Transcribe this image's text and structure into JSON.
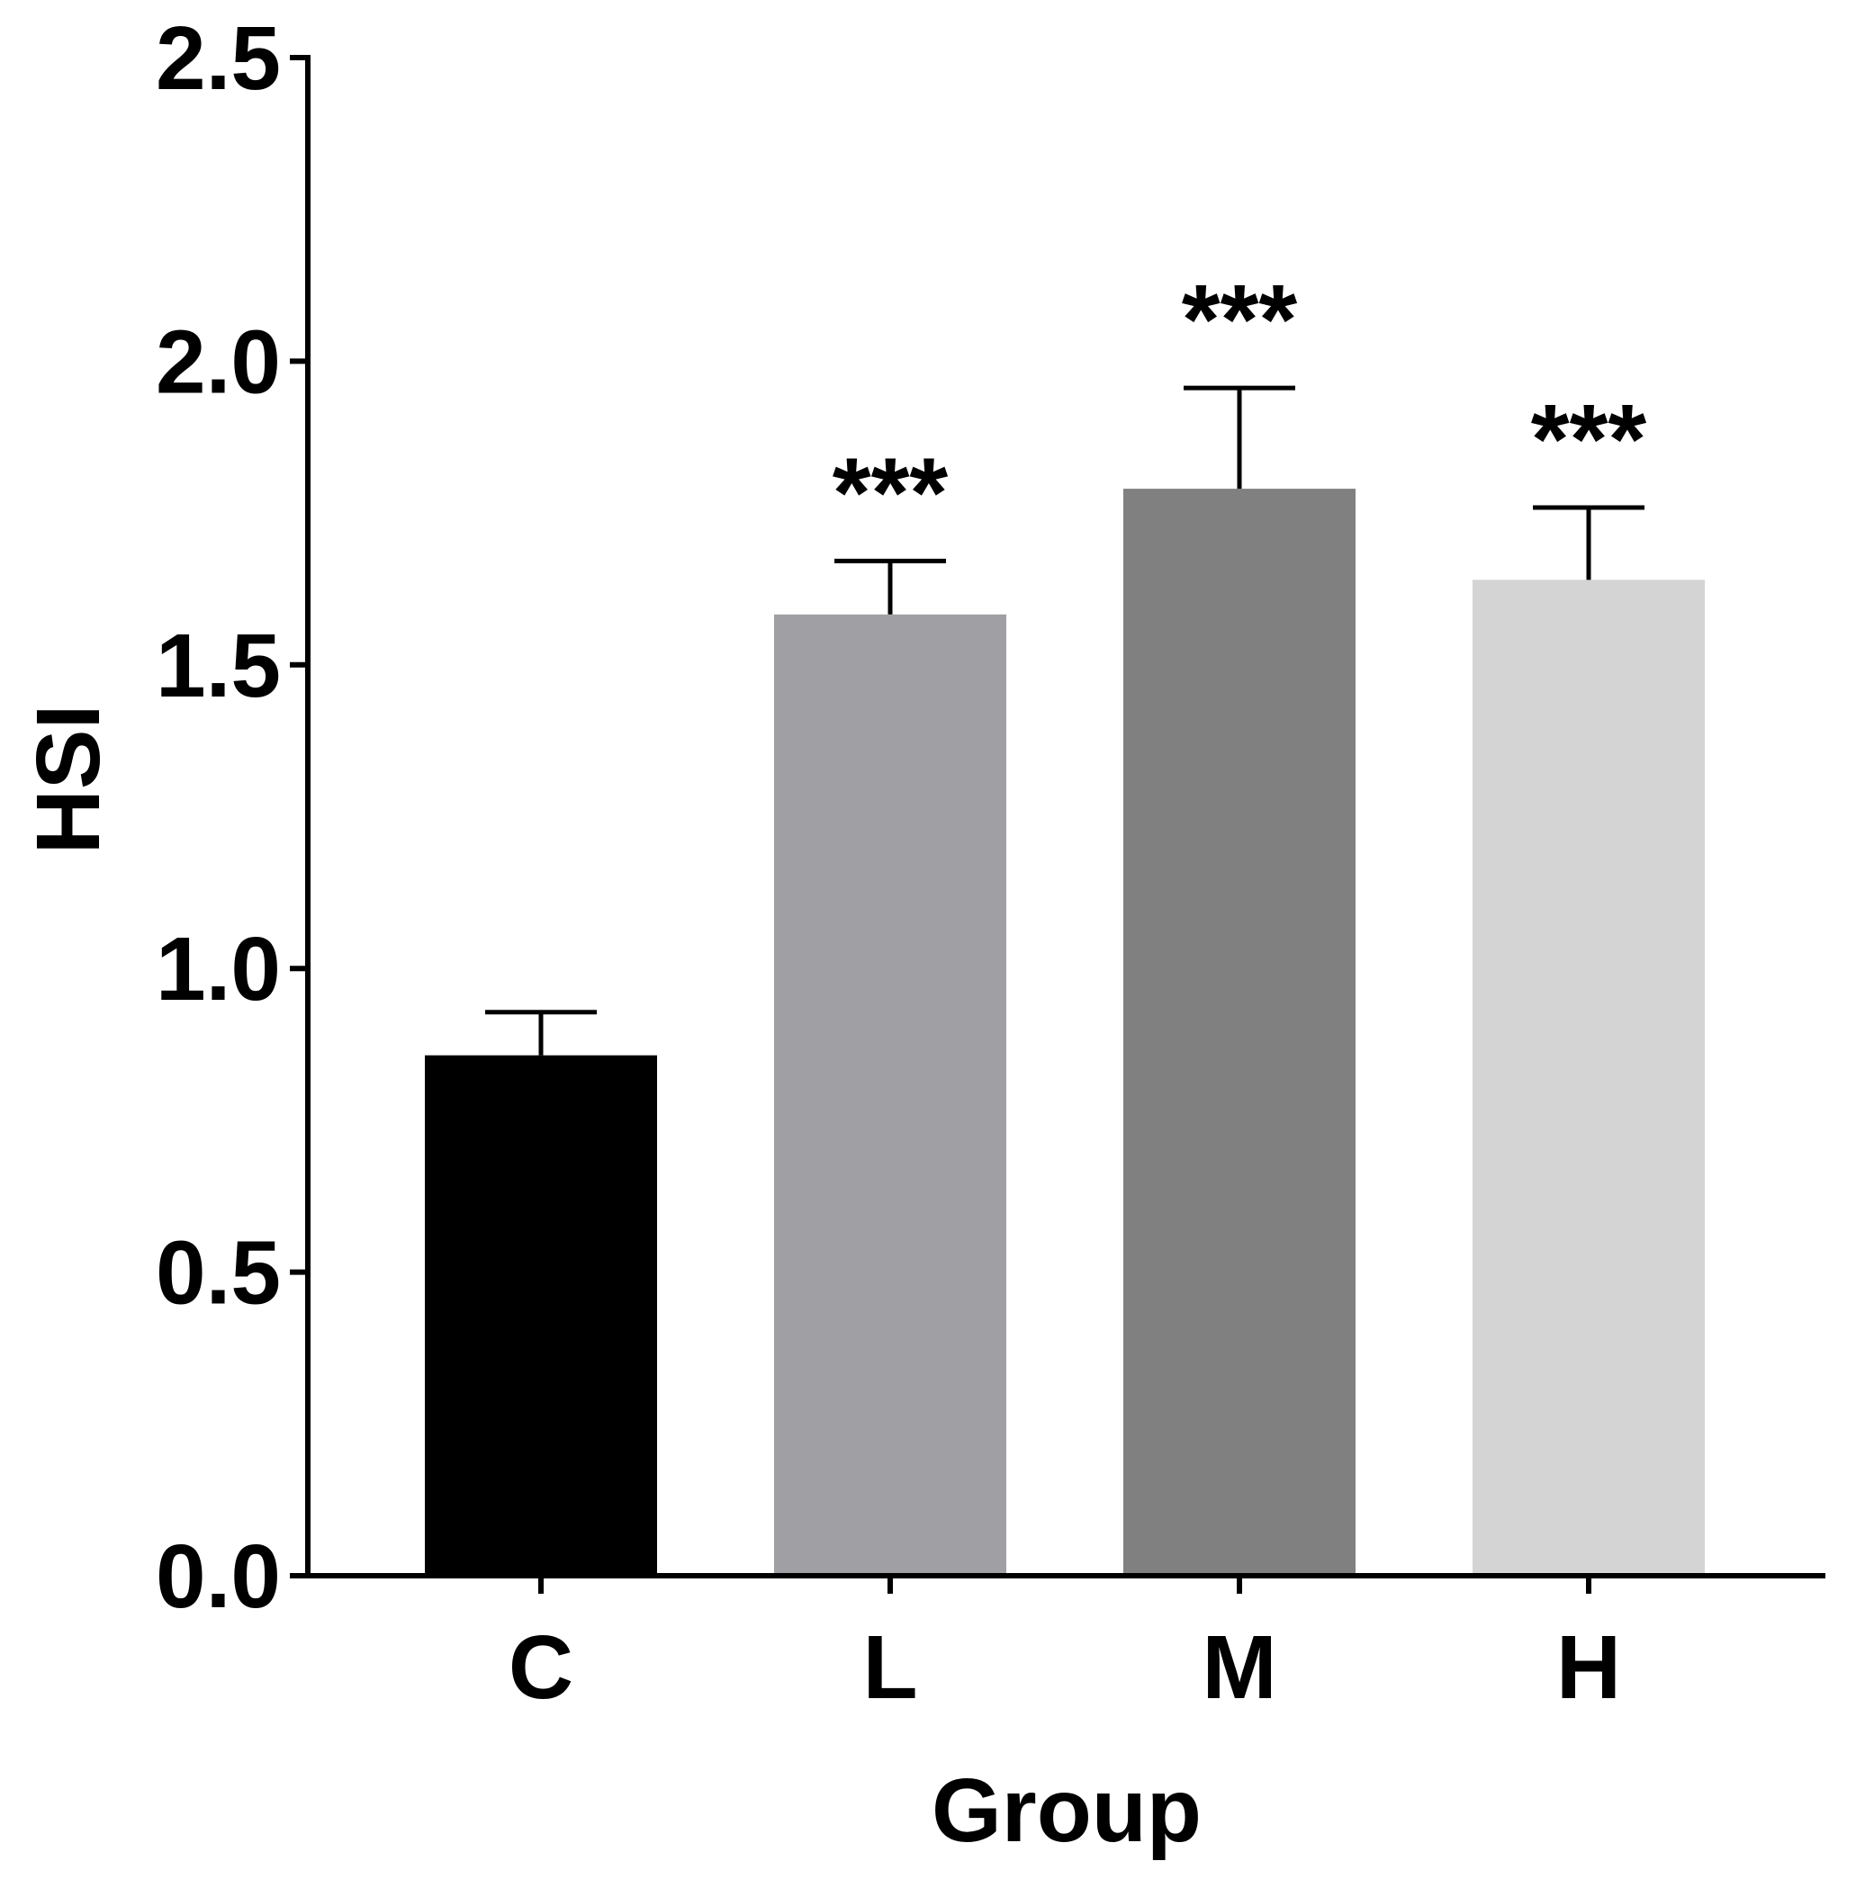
{
  "chart_data": {
    "type": "bar",
    "title": "",
    "xlabel": "Group",
    "ylabel": "HSI",
    "categories": [
      "C",
      "L",
      "M",
      "H"
    ],
    "values": [
      0.857,
      1.583,
      1.79,
      1.64
    ],
    "errors": [
      0.071,
      0.088,
      0.166,
      0.119
    ],
    "significance": [
      "",
      "***",
      "***",
      "***"
    ],
    "colors": [
      "#000000",
      "#a0a0a4",
      "#808080",
      "#d4d4d4"
    ],
    "ylim": [
      0,
      2.5
    ],
    "yticks": [
      "0.0",
      "0.5",
      "1.0",
      "1.5",
      "2.0",
      "2.5"
    ],
    "grid": false,
    "legend": "none"
  }
}
